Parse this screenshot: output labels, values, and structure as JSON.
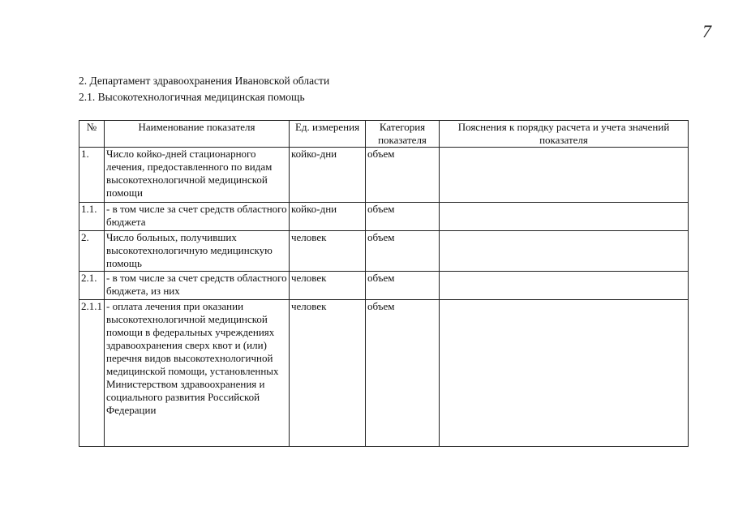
{
  "page_number": "7",
  "heading": "2. Департамент здравоохранения Ивановской области",
  "subheading": "2.1. Высокотехнологичная медицинская помощь",
  "table": {
    "headers": [
      "№",
      "Наименование показателя",
      "Ед. измерения",
      "Категория показателя",
      "Пояснения к порядку расчета и учета значений показателя"
    ],
    "rows": [
      {
        "num": "1.",
        "name": "Число койко-дней стационарного лечения, предоставленного по видам высокотехнологичной медицинской помощи",
        "unit": "койко-дни",
        "category": "объем",
        "notes": ""
      },
      {
        "num": "1.1.",
        "name": "- в том числе за счет средств областного бюджета",
        "unit": "койко-дни",
        "category": "объем",
        "notes": ""
      },
      {
        "num": "2.",
        "name": "Число больных, получивших высокотехнологичную медицинскую помощь",
        "unit": "человек",
        "category": "объем",
        "notes": ""
      },
      {
        "num": "2.1.",
        "name": "- в том числе за счет средств областного бюджета, из них",
        "unit": "человек",
        "category": "объем",
        "notes": ""
      },
      {
        "num": "2.1.1",
        "name": "- оплата лечения при оказании высокотехнологичной медицинской помощи в федеральных учреждениях здравоохранения сверх квот и (или) перечня видов высокотехнологичной медицинской помощи, установленных Министерством здравоохранения и социального развития Российской Федерации",
        "unit": "человек",
        "category": "объем",
        "notes": ""
      }
    ]
  }
}
